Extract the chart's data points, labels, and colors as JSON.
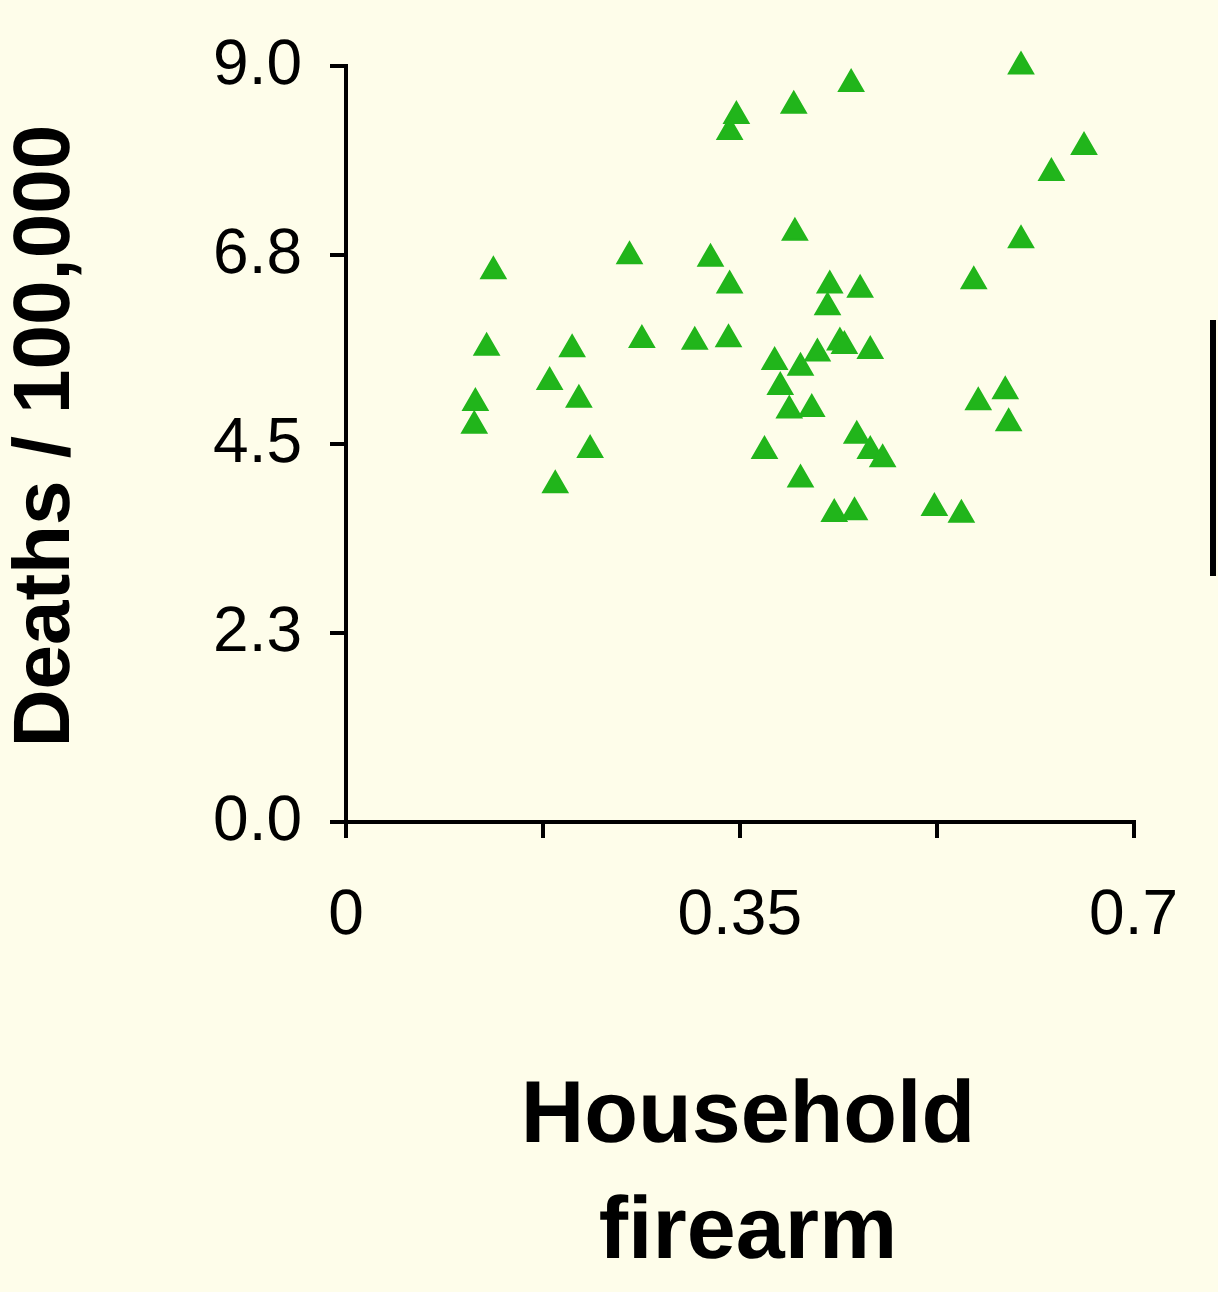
{
  "chart_data": {
    "type": "scatter",
    "xlabel": "Household firearm",
    "ylabel": "Deaths / 100,000",
    "xlim": [
      0,
      0.7
    ],
    "xticks": [
      0,
      {
        "value": 0.175,
        "label": null
      },
      0.35,
      {
        "value": 0.525,
        "label": null
      },
      0.7
    ],
    "ylim": [
      0,
      9
    ],
    "yticks": [
      {
        "value": 0,
        "label": "0.0"
      },
      {
        "value": 2.25,
        "label": "2.3"
      },
      {
        "value": 4.5,
        "label": "4.5"
      },
      {
        "value": 6.75,
        "label": "6.8"
      },
      {
        "value": 9,
        "label": "9.0"
      }
    ],
    "grid": false,
    "legend": false,
    "marker": "triangle",
    "series": [
      {
        "color": "#21b51b",
        "x": [
          0.6,
          0.449,
          0.398,
          0.347,
          0.341,
          0.656,
          0.627,
          0.399,
          0.6,
          0.131,
          0.252,
          0.324,
          0.341,
          0.43,
          0.457,
          0.558,
          0.428,
          0.125,
          0.201,
          0.263,
          0.31,
          0.34,
          0.439,
          0.443,
          0.466,
          0.419,
          0.381,
          0.404,
          0.181,
          0.386,
          0.115,
          0.207,
          0.562,
          0.586,
          0.114,
          0.394,
          0.414,
          0.589,
          0.454,
          0.217,
          0.372,
          0.466,
          0.477,
          0.186,
          0.404,
          0.434,
          0.452,
          0.523,
          0.547
        ],
        "values": [
          9.0,
          8.79,
          8.53,
          8.41,
          8.22,
          8.04,
          7.73,
          7.02,
          6.93,
          6.56,
          6.74,
          6.71,
          6.39,
          6.39,
          6.34,
          6.44,
          6.13,
          5.65,
          5.63,
          5.74,
          5.72,
          5.75,
          5.71,
          5.67,
          5.61,
          5.58,
          5.48,
          5.41,
          5.24,
          5.18,
          4.99,
          5.03,
          5.0,
          5.13,
          4.72,
          4.9,
          4.92,
          4.75,
          4.6,
          4.43,
          4.42,
          4.42,
          4.32,
          4.01,
          4.08,
          3.67,
          3.69,
          3.74,
          3.66
        ]
      }
    ]
  }
}
